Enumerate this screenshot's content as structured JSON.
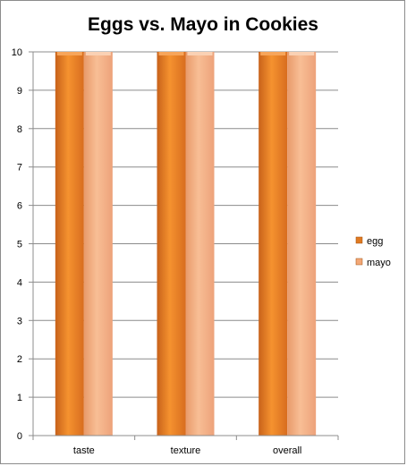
{
  "chart_data": {
    "type": "bar",
    "title": "Eggs vs. Mayo in Cookies",
    "categories": [
      "taste",
      "texture",
      "overall"
    ],
    "series": [
      {
        "name": "egg",
        "values": [
          10,
          10,
          10
        ],
        "color": "#f0892b"
      },
      {
        "name": "mayo",
        "values": [
          10,
          10,
          10
        ],
        "color": "#f6b083"
      }
    ],
    "ylim": [
      0,
      10
    ],
    "yticks": [
      "0",
      "1",
      "2",
      "3",
      "4",
      "5",
      "6",
      "7",
      "8",
      "9",
      "10"
    ],
    "grid": true,
    "legend_position": "right"
  }
}
